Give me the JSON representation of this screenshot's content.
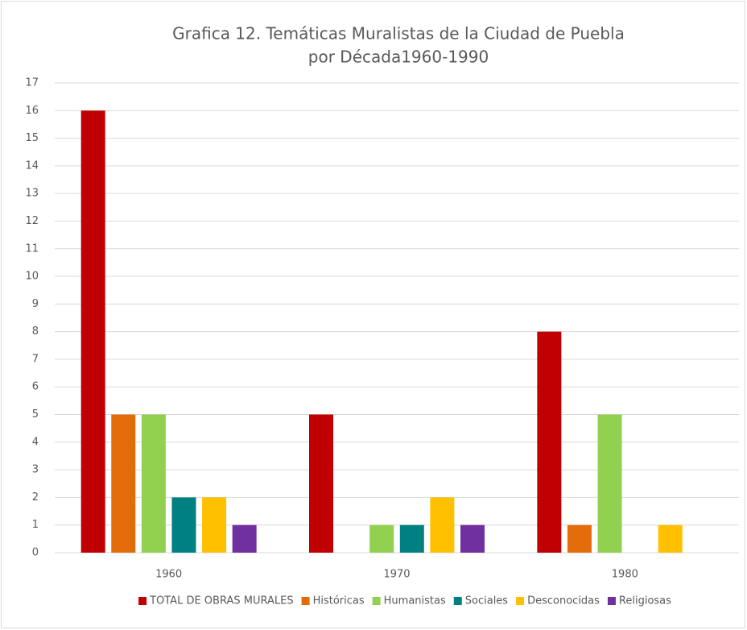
{
  "chart_data": {
    "type": "bar",
    "title": [
      "Grafica 12. Temáticas Muralistas de la Ciudad de Puebla",
      "por Década1960-1990"
    ],
    "categories": [
      "1960",
      "1970",
      "1980"
    ],
    "series": [
      {
        "name": "TOTAL DE OBRAS MURALES",
        "color": "#c00000",
        "values": [
          16,
          5,
          8
        ]
      },
      {
        "name": "Históricas",
        "color": "#e36c0a",
        "values": [
          5,
          0,
          1
        ]
      },
      {
        "name": "Humanistas",
        "color": "#92d050",
        "values": [
          5,
          1,
          5
        ]
      },
      {
        "name": "Sociales",
        "color": "#008080",
        "values": [
          2,
          1,
          0
        ]
      },
      {
        "name": "Desconocidas",
        "color": "#ffc000",
        "values": [
          2,
          2,
          1
        ]
      },
      {
        "name": "Religiosas",
        "color": "#7030a0",
        "values": [
          1,
          1,
          0
        ]
      }
    ],
    "ylim": [
      0,
      17
    ],
    "yticks": [
      0,
      1,
      2,
      3,
      4,
      5,
      6,
      7,
      8,
      9,
      10,
      11,
      12,
      13,
      14,
      15,
      16,
      17
    ],
    "grid": true,
    "legend": "bottom"
  }
}
